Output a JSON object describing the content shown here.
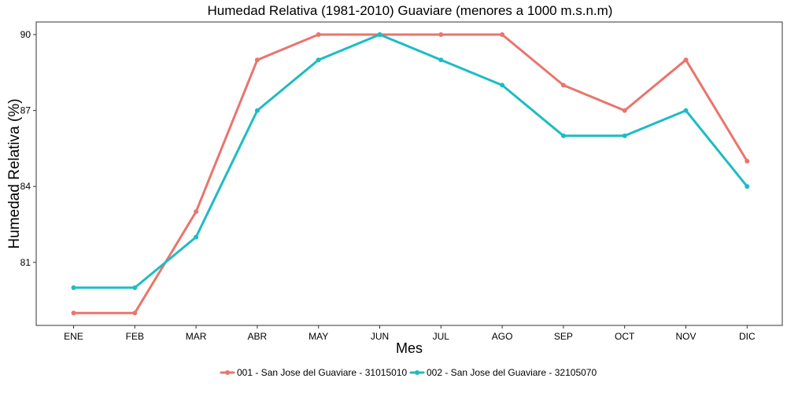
{
  "chart_data": {
    "type": "line",
    "title": "Humedad Relativa (1981-2010) Guaviare (menores a 1000 m.s.n.m)",
    "xlabel": "Mes",
    "ylabel": "Humedad Relativa (%)",
    "categories": [
      "ENE",
      "FEB",
      "MAR",
      "ABR",
      "MAY",
      "JUN",
      "JUL",
      "AGO",
      "SEP",
      "OCT",
      "NOV",
      "DIC"
    ],
    "y_ticks": [
      81,
      84,
      87,
      90
    ],
    "ylim": [
      78.9,
      90.1
    ],
    "grid": false,
    "legend_position": "bottom",
    "series": [
      {
        "name": "001 - San Jose del Guaviare - 31015010",
        "color": "#E9756C",
        "values": [
          79,
          79,
          83,
          89,
          90,
          90,
          90,
          90,
          88,
          87,
          89,
          85
        ]
      },
      {
        "name": "002 - San Jose del Guaviare - 32105070",
        "color": "#1DBCC4",
        "values": [
          80,
          80,
          82,
          87,
          89,
          90,
          89,
          88,
          86,
          86,
          87,
          84
        ]
      }
    ]
  }
}
